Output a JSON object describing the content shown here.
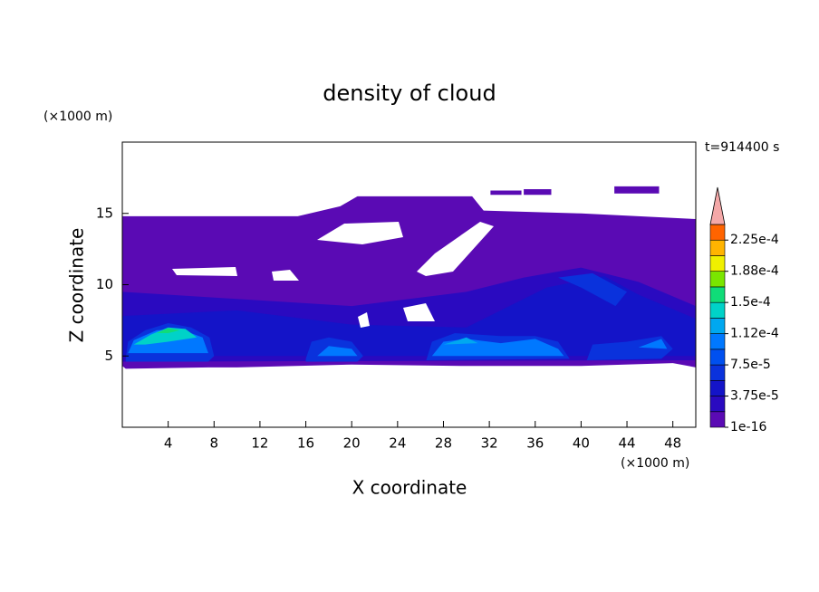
{
  "chart_data": {
    "type": "contour",
    "title": "density of cloud",
    "x_label": "X coordinate",
    "y_label": "Z coordinate",
    "x_unit": "(×1000 m)",
    "y_unit": "(×1000 m)",
    "time_label": "t=914400 s",
    "xlim": [
      0,
      50
    ],
    "ylim": [
      0,
      20
    ],
    "xticks": [
      4,
      8,
      12,
      16,
      20,
      24,
      28,
      32,
      36,
      40,
      44,
      48
    ],
    "yticks": [
      5,
      10,
      15
    ],
    "clim": [
      1e-16,
      0.00024375
    ],
    "cticks": [
      {
        "value": 1e-16,
        "label": "1e-16"
      },
      {
        "value": 3.75e-05,
        "label": "3.75e-5"
      },
      {
        "value": 7.5e-05,
        "label": "7.5e-5"
      },
      {
        "value": 0.0001125,
        "label": "1.12e-4"
      },
      {
        "value": 0.00015,
        "label": "1.5e-4"
      },
      {
        "value": 0.0001875,
        "label": "1.88e-4"
      },
      {
        "value": 0.000225,
        "label": "2.25e-4"
      }
    ],
    "colors": [
      "#5a0ab4",
      "#2a0ac0",
      "#1414c8",
      "#0a32dc",
      "#0050f0",
      "#0078ff",
      "#00a8f0",
      "#00d2c8",
      "#10dc78",
      "#7ae600",
      "#f0f000",
      "#ffb400",
      "#ff6400"
    ],
    "extend_color": "#f4a8a8",
    "regions": [
      {
        "level": 0,
        "points": [
          [
            0,
            14.8
          ],
          [
            15.3,
            14.8
          ],
          [
            19,
            15.5
          ],
          [
            20.5,
            16.2
          ],
          [
            30.5,
            16.2
          ],
          [
            31.5,
            15.2
          ],
          [
            40,
            15
          ],
          [
            50,
            14.6
          ],
          [
            50,
            4.2
          ],
          [
            48,
            4.5
          ],
          [
            40,
            4.3
          ],
          [
            30,
            4.3
          ],
          [
            20,
            4.4
          ],
          [
            10,
            4.2
          ],
          [
            7.5,
            4.2
          ],
          [
            0.3,
            4.1
          ],
          [
            0,
            4.3
          ]
        ]
      },
      {
        "level": 0,
        "points": [
          [
            32.1,
            16.6
          ],
          [
            34.8,
            16.6
          ],
          [
            34.8,
            16.3
          ],
          [
            32.1,
            16.3
          ]
        ]
      },
      {
        "level": 0,
        "points": [
          [
            35,
            16.7
          ],
          [
            37.4,
            16.7
          ],
          [
            37.4,
            16.3
          ],
          [
            35,
            16.3
          ]
        ]
      },
      {
        "level": 0,
        "points": [
          [
            42.9,
            16.9
          ],
          [
            46.8,
            16.9
          ],
          [
            46.8,
            16.4
          ],
          [
            42.9,
            16.4
          ]
        ]
      },
      {
        "level": 1,
        "points": [
          [
            0,
            9.5
          ],
          [
            10,
            9
          ],
          [
            20,
            8.5
          ],
          [
            30,
            9.5
          ],
          [
            35,
            10.5
          ],
          [
            40,
            11.2
          ],
          [
            45,
            10.2
          ],
          [
            50,
            8.5
          ],
          [
            50,
            4.7
          ],
          [
            0,
            4.6
          ]
        ]
      },
      {
        "level": 2,
        "points": [
          [
            0,
            7.8
          ],
          [
            10,
            8.2
          ],
          [
            20,
            7.2
          ],
          [
            30,
            7
          ],
          [
            37,
            9.8
          ],
          [
            42,
            10.6
          ],
          [
            45,
            9.3
          ],
          [
            50,
            7.6
          ],
          [
            50,
            5
          ],
          [
            0,
            5
          ]
        ]
      },
      {
        "level": 3,
        "points": [
          [
            38,
            10.5
          ],
          [
            40,
            9.8
          ],
          [
            43,
            8.5
          ],
          [
            44,
            9.5
          ],
          [
            41,
            10.8
          ]
        ]
      },
      {
        "level": 3,
        "points": [
          [
            0.3,
            4.8
          ],
          [
            0.5,
            6
          ],
          [
            2,
            6.8
          ],
          [
            4,
            7.3
          ],
          [
            6,
            7
          ],
          [
            7.6,
            6.3
          ],
          [
            8,
            5
          ],
          [
            7.5,
            4.6
          ],
          [
            0.3,
            4.6
          ]
        ]
      },
      {
        "level": 5,
        "points": [
          [
            0.5,
            5.2
          ],
          [
            1,
            6.1
          ],
          [
            3,
            6.8
          ],
          [
            5,
            6.9
          ],
          [
            7,
            6.3
          ],
          [
            7.5,
            5.2
          ]
        ]
      },
      {
        "level": 7,
        "points": [
          [
            1,
            5.8
          ],
          [
            2.5,
            6.5
          ],
          [
            4,
            7
          ],
          [
            5.5,
            6.9
          ],
          [
            6.5,
            6.3
          ],
          [
            4,
            6
          ],
          [
            2,
            5.8
          ]
        ]
      },
      {
        "level": 8,
        "points": [
          [
            3,
            6.6
          ],
          [
            4,
            6.95
          ],
          [
            5,
            6.8
          ],
          [
            4,
            6.6
          ]
        ]
      },
      {
        "level": 3,
        "points": [
          [
            16,
            4.8
          ],
          [
            16.5,
            6
          ],
          [
            18,
            6.3
          ],
          [
            20,
            6
          ],
          [
            21,
            5
          ],
          [
            20.5,
            4.6
          ],
          [
            16,
            4.6
          ]
        ]
      },
      {
        "level": 5,
        "points": [
          [
            17,
            5
          ],
          [
            18,
            5.7
          ],
          [
            20,
            5.5
          ],
          [
            20.5,
            5
          ]
        ]
      },
      {
        "level": 3,
        "points": [
          [
            26.5,
            4.7
          ],
          [
            27,
            6
          ],
          [
            29,
            6.6
          ],
          [
            33,
            6.4
          ],
          [
            36,
            6.4
          ],
          [
            38,
            6
          ],
          [
            39,
            4.8
          ]
        ]
      },
      {
        "level": 5,
        "points": [
          [
            27,
            5
          ],
          [
            28,
            6
          ],
          [
            30,
            6.2
          ],
          [
            33,
            5.9
          ],
          [
            36,
            6.2
          ],
          [
            38,
            5.5
          ],
          [
            38.5,
            5
          ]
        ]
      },
      {
        "level": 6,
        "points": [
          [
            28,
            5.8
          ],
          [
            30,
            6.3
          ],
          [
            31,
            5.9
          ]
        ]
      },
      {
        "level": 3,
        "points": [
          [
            40.5,
            4.7
          ],
          [
            41,
            5.8
          ],
          [
            44,
            6
          ],
          [
            47,
            6.4
          ],
          [
            48,
            5.5
          ],
          [
            47,
            4.8
          ]
        ]
      },
      {
        "level": 5,
        "points": [
          [
            45,
            5.6
          ],
          [
            47,
            6.2
          ],
          [
            47.5,
            5.5
          ]
        ]
      }
    ]
  }
}
